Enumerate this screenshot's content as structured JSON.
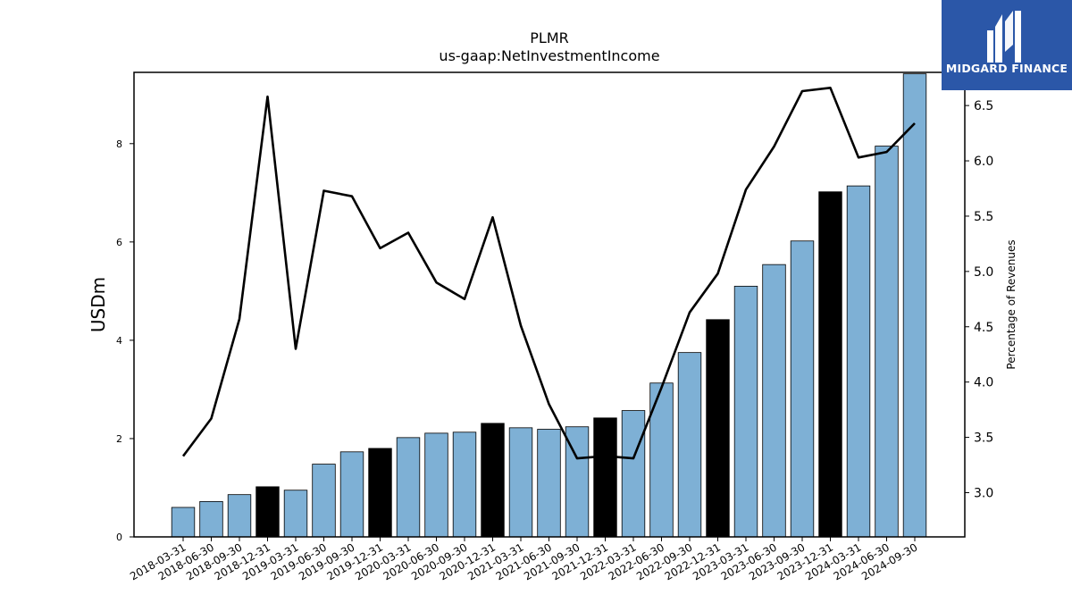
{
  "brand": {
    "name": "MIDGARD FINANCE",
    "color": "#2b57a8"
  },
  "chart_data": {
    "type": "bar",
    "title": "PLMR",
    "subtitle": "us-gaap:NetInvestmentIncome",
    "ylabel": "USDm",
    "ylabel_right": "Percentage of Revenues",
    "ylim": [
      0,
      9.45
    ],
    "y2lim": [
      2.6,
      6.8
    ],
    "yticks": [
      0,
      2,
      4,
      6,
      8
    ],
    "y2ticks": [
      3.0,
      3.5,
      4.0,
      4.5,
      5.0,
      5.5,
      6.0,
      6.5
    ],
    "categories": [
      "2018-03-31",
      "2018-06-30",
      "2018-09-30",
      "2018-12-31",
      "2019-03-31",
      "2019-06-30",
      "2019-09-30",
      "2019-12-31",
      "2020-03-31",
      "2020-06-30",
      "2020-09-30",
      "2020-12-31",
      "2021-03-31",
      "2021-06-30",
      "2021-09-30",
      "2021-12-31",
      "2022-03-31",
      "2022-06-30",
      "2022-09-30",
      "2022-12-31",
      "2023-03-31",
      "2023-06-30",
      "2023-09-30",
      "2023-12-31",
      "2024-03-31",
      "2024-06-30",
      "2024-09-30"
    ],
    "series": [
      {
        "kind": "bar",
        "axis": "left",
        "values": [
          0.6,
          0.72,
          0.86,
          1.02,
          0.95,
          1.48,
          1.73,
          1.8,
          2.02,
          2.11,
          2.13,
          2.31,
          2.22,
          2.19,
          2.24,
          2.42,
          2.57,
          3.13,
          3.75,
          4.42,
          5.1,
          5.54,
          6.02,
          7.02,
          7.14,
          7.95,
          9.42
        ],
        "colors": {
          "quarter": "#7eb0d5",
          "year_end": "#000000"
        }
      },
      {
        "kind": "line",
        "axis": "right",
        "values": [
          3.33,
          3.67,
          4.57,
          6.58,
          4.3,
          5.73,
          5.68,
          5.21,
          5.35,
          4.9,
          4.75,
          5.49,
          4.51,
          3.8,
          3.31,
          3.33,
          3.31,
          3.95,
          4.63,
          4.98,
          5.74,
          6.13,
          6.63,
          6.66,
          6.03,
          6.08,
          6.34
        ],
        "color": "#000000"
      }
    ]
  }
}
